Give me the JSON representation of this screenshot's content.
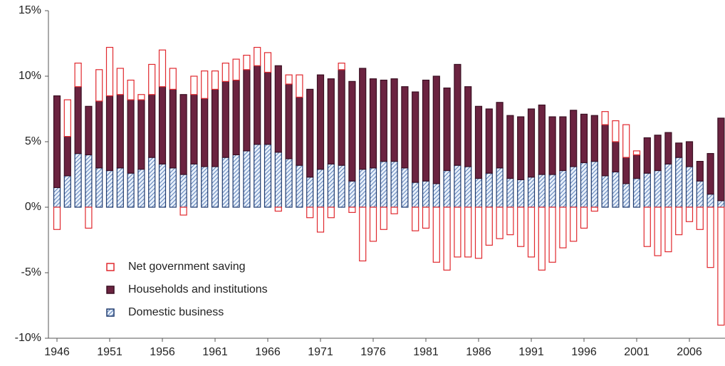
{
  "chart_data": {
    "type": "stacked_bar",
    "categories": [
      "1946",
      null,
      null,
      null,
      null,
      "1951",
      null,
      null,
      null,
      null,
      "1956",
      null,
      null,
      null,
      null,
      "1961",
      null,
      null,
      null,
      null,
      "1966",
      null,
      null,
      null,
      null,
      "1971",
      null,
      null,
      null,
      null,
      "1976",
      null,
      null,
      null,
      null,
      "1981",
      null,
      null,
      null,
      null,
      "1986",
      null,
      null,
      null,
      null,
      "1991",
      null,
      null,
      null,
      null,
      "1996",
      null,
      null,
      null,
      null,
      "2001",
      null,
      null,
      null,
      null,
      "2006",
      null,
      null,
      null
    ],
    "series": [
      {
        "name": "Domestic business",
        "color": "#1f3a6e",
        "values": [
          1.5,
          2.4,
          4.1,
          4.0,
          3.0,
          2.8,
          3.0,
          2.6,
          2.9,
          3.8,
          3.3,
          3.0,
          2.5,
          3.3,
          3.1,
          3.1,
          3.8,
          4.0,
          4.3,
          4.8,
          4.8,
          4.2,
          3.7,
          3.2,
          2.3,
          2.9,
          3.3,
          3.2,
          2.0,
          2.9,
          3.0,
          3.5,
          3.5,
          3.0,
          1.9,
          2.0,
          1.8,
          2.8,
          3.2,
          3.1,
          2.2,
          2.6,
          3.0,
          2.2,
          2.1,
          2.3,
          2.5,
          2.5,
          2.8,
          3.1,
          3.4,
          3.5,
          2.4,
          2.7,
          1.8,
          2.2,
          2.6,
          2.8,
          3.3,
          3.8,
          3.1,
          2.0,
          1.0,
          0.5
        ]
      },
      {
        "name": "Households and institutions",
        "color": "#6b2340",
        "values": [
          7.0,
          3.0,
          5.1,
          3.7,
          5.1,
          5.7,
          5.6,
          5.6,
          5.3,
          4.8,
          5.9,
          6.0,
          6.1,
          5.3,
          5.2,
          5.9,
          5.8,
          5.7,
          6.2,
          6.0,
          5.5,
          6.6,
          5.7,
          5.2,
          6.7,
          7.2,
          6.5,
          7.3,
          7.6,
          7.7,
          6.8,
          6.2,
          6.3,
          6.2,
          6.9,
          7.7,
          8.2,
          6.3,
          7.7,
          6.1,
          5.5,
          4.9,
          5.0,
          4.8,
          4.8,
          5.2,
          5.3,
          4.4,
          4.1,
          4.3,
          3.7,
          3.5,
          3.9,
          2.3,
          2.0,
          1.8,
          2.7,
          2.7,
          2.4,
          1.1,
          1.9,
          1.5,
          3.1,
          6.3
        ]
      },
      {
        "name": "Net government saving",
        "color": "#e0282e",
        "values": [
          -1.7,
          2.8,
          1.8,
          -1.6,
          2.4,
          3.7,
          2.0,
          1.5,
          0.4,
          2.3,
          2.8,
          1.6,
          -0.6,
          1.4,
          2.1,
          1.4,
          1.4,
          1.6,
          1.1,
          1.4,
          1.5,
          -0.3,
          0.7,
          1.7,
          -0.8,
          -1.9,
          -0.8,
          0.5,
          -0.4,
          -4.1,
          -2.6,
          -1.7,
          -0.5,
          0,
          -1.8,
          -1.6,
          -4.2,
          -4.8,
          -3.8,
          -3.8,
          -3.9,
          -2.9,
          -2.4,
          -2.1,
          -3.0,
          -3.8,
          -4.8,
          -4.2,
          -3.1,
          -2.6,
          -1.6,
          -0.3,
          1.0,
          1.6,
          2.5,
          0.3,
          -3.0,
          -3.7,
          -3.4,
          -2.1,
          -1.1,
          -1.7,
          -4.6,
          -9.0
        ]
      }
    ],
    "ylim": [
      -10,
      15
    ],
    "yticks": [
      {
        "value": -10,
        "label": "-10%"
      },
      {
        "value": -5,
        "label": "-5%"
      },
      {
        "value": 0,
        "label": "0%"
      },
      {
        "value": 5,
        "label": "5%"
      },
      {
        "value": 10,
        "label": "10%"
      },
      {
        "value": 15,
        "label": "15%"
      }
    ]
  }
}
